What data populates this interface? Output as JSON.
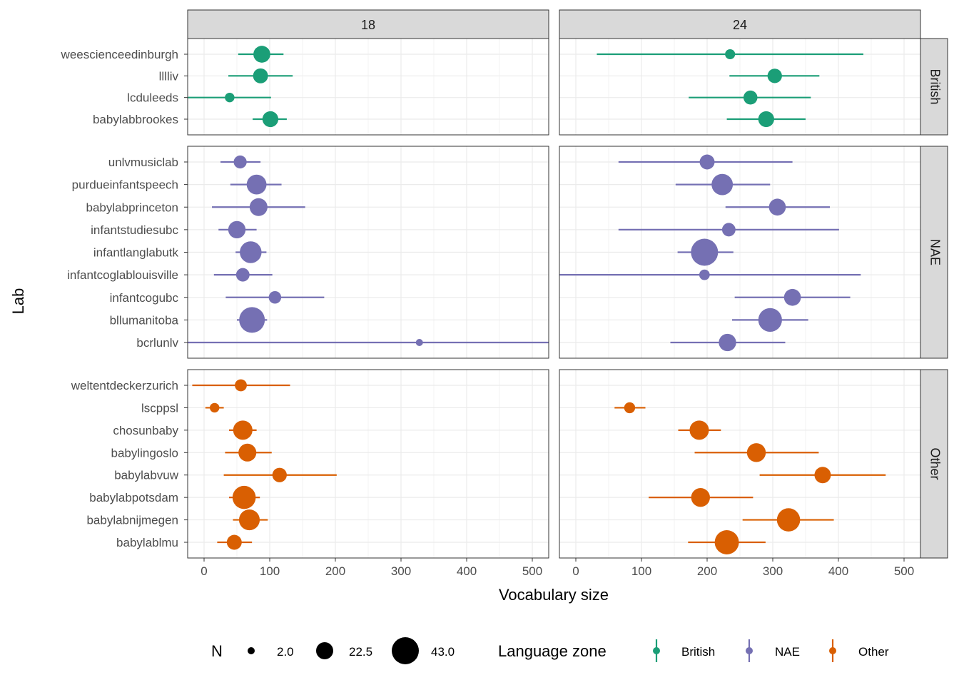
{
  "chart_data": {
    "type": "scatter",
    "style": "point-range with error bars, faceted grid",
    "xlabel": "Vocabulary size",
    "ylabel": "Lab",
    "xlim": [
      -25,
      525
    ],
    "x_ticks": [
      0,
      100,
      200,
      300,
      400,
      500
    ],
    "grid": true,
    "legend_position": "bottom",
    "column_facets": [
      "18",
      "24"
    ],
    "row_facets": [
      {
        "zone": "British",
        "labs": [
          "weescienceedinburgh",
          "lllliv",
          "lcduleeds",
          "babylabbrookes"
        ]
      },
      {
        "zone": "NAE",
        "labs": [
          "unlvmusiclab",
          "purdueinfantspeech",
          "babylabprinceton",
          "infantstudiesubc",
          "infantlanglabutk",
          "infantcoglablouisville",
          "infantcogubc",
          "bllumanitoba",
          "bcrlunlv"
        ]
      },
      {
        "zone": "Other",
        "labs": [
          "weltentdeckerzurich",
          "lscppsl",
          "chosunbaby",
          "babylingoslo",
          "babylabvuw",
          "babylabpotsdam",
          "babylabnijmegen",
          "babylablmu"
        ]
      }
    ],
    "colors": {
      "British": "#1b9e77",
      "NAE": "#7570b3",
      "Other": "#d95f02"
    },
    "size_legend": {
      "title": "N",
      "values": [
        2,
        22.5,
        43
      ],
      "labels": [
        "2.0",
        "22.5",
        "43.0"
      ]
    },
    "color_legend": {
      "title": "Language zone",
      "entries": [
        "British",
        "NAE",
        "Other"
      ]
    },
    "series": [
      {
        "name": "18",
        "points": [
          {
            "lab": "weescienceedinburgh",
            "zone": "British",
            "mean": 88,
            "low": 52,
            "high": 121,
            "n": 22
          },
          {
            "lab": "lllliv",
            "zone": "British",
            "mean": 86,
            "low": 37,
            "high": 135,
            "n": 18
          },
          {
            "lab": "lcduleeds",
            "zone": "British",
            "mean": 39,
            "low": -25,
            "high": 102,
            "n": 7
          },
          {
            "lab": "babylabbrookes",
            "zone": "British",
            "mean": 101,
            "low": 74,
            "high": 126,
            "n": 20
          },
          {
            "lab": "unlvmusiclab",
            "zone": "NAE",
            "mean": 55,
            "low": 25,
            "high": 86,
            "n": 14
          },
          {
            "lab": "purdueinfantspeech",
            "zone": "NAE",
            "mean": 80,
            "low": 40,
            "high": 118,
            "n": 28
          },
          {
            "lab": "babylabprinceton",
            "zone": "NAE",
            "mean": 83,
            "low": 12,
            "high": 154,
            "n": 24
          },
          {
            "lab": "infantstudiesubc",
            "zone": "NAE",
            "mean": 50,
            "low": 22,
            "high": 80,
            "n": 23
          },
          {
            "lab": "infantlanglabutk",
            "zone": "NAE",
            "mean": 71,
            "low": 48,
            "high": 95,
            "n": 32
          },
          {
            "lab": "infantcoglablouisville",
            "zone": "NAE",
            "mean": 59,
            "low": 15,
            "high": 104,
            "n": 15
          },
          {
            "lab": "infantcogubc",
            "zone": "NAE",
            "mean": 108,
            "low": 33,
            "high": 183,
            "n": 13
          },
          {
            "lab": "bllumanitoba",
            "zone": "NAE",
            "mean": 73,
            "low": 50,
            "high": 96,
            "n": 40
          },
          {
            "lab": "bcrlunlv",
            "zone": "NAE",
            "mean": 328,
            "low": -25,
            "high": 525,
            "n": 2
          },
          {
            "lab": "weltentdeckerzurich",
            "zone": "Other",
            "mean": 56,
            "low": -18,
            "high": 131,
            "n": 12
          },
          {
            "lab": "lscppsl",
            "zone": "Other",
            "mean": 16,
            "low": 2,
            "high": 30,
            "n": 7
          },
          {
            "lab": "chosunbaby",
            "zone": "Other",
            "mean": 59,
            "low": 38,
            "high": 80,
            "n": 27
          },
          {
            "lab": "babylingoslo",
            "zone": "Other",
            "mean": 66,
            "low": 32,
            "high": 103,
            "n": 24
          },
          {
            "lab": "babylabvuw",
            "zone": "Other",
            "mean": 115,
            "low": 30,
            "high": 202,
            "n": 17
          },
          {
            "lab": "babylabpotsdam",
            "zone": "Other",
            "mean": 61,
            "low": 38,
            "high": 85,
            "n": 35
          },
          {
            "lab": "babylabnijmegen",
            "zone": "Other",
            "mean": 69,
            "low": 44,
            "high": 97,
            "n": 30
          },
          {
            "lab": "babylablmu",
            "zone": "Other",
            "mean": 46,
            "low": 20,
            "high": 73,
            "n": 18
          }
        ]
      },
      {
        "name": "24",
        "points": [
          {
            "lab": "weescienceedinburgh",
            "zone": "British",
            "mean": 235,
            "low": 32,
            "high": 438,
            "n": 8
          },
          {
            "lab": "lllliv",
            "zone": "British",
            "mean": 303,
            "low": 234,
            "high": 371,
            "n": 17
          },
          {
            "lab": "lcduleeds",
            "zone": "British",
            "mean": 266,
            "low": 172,
            "high": 358,
            "n": 16
          },
          {
            "lab": "babylabbrookes",
            "zone": "British",
            "mean": 290,
            "low": 230,
            "high": 350,
            "n": 20
          },
          {
            "lab": "unlvmusiclab",
            "zone": "NAE",
            "mean": 200,
            "low": 65,
            "high": 330,
            "n": 18
          },
          {
            "lab": "purdueinfantspeech",
            "zone": "NAE",
            "mean": 223,
            "low": 152,
            "high": 296,
            "n": 31
          },
          {
            "lab": "babylabprinceton",
            "zone": "NAE",
            "mean": 307,
            "low": 228,
            "high": 387,
            "n": 22
          },
          {
            "lab": "infantstudiesubc",
            "zone": "NAE",
            "mean": 233,
            "low": 65,
            "high": 401,
            "n": 15
          },
          {
            "lab": "infantlanglabutk",
            "zone": "NAE",
            "mean": 196,
            "low": 155,
            "high": 240,
            "n": 43
          },
          {
            "lab": "infantcoglablouisville",
            "zone": "NAE",
            "mean": 196,
            "low": -25,
            "high": 434,
            "n": 9
          },
          {
            "lab": "infantcogubc",
            "zone": "NAE",
            "mean": 330,
            "low": 242,
            "high": 418,
            "n": 22
          },
          {
            "lab": "bllumanitoba",
            "zone": "NAE",
            "mean": 296,
            "low": 238,
            "high": 354,
            "n": 36
          },
          {
            "lab": "bcrlunlv",
            "zone": "NAE",
            "mean": 231,
            "low": 144,
            "high": 319,
            "n": 23
          },
          {
            "lab": "weltentdeckerzurich",
            "zone": "Other",
            "mean": null,
            "low": null,
            "high": null,
            "n": null
          },
          {
            "lab": "lscppsl",
            "zone": "Other",
            "mean": 82,
            "low": 59,
            "high": 106,
            "n": 10
          },
          {
            "lab": "chosunbaby",
            "zone": "Other",
            "mean": 188,
            "low": 156,
            "high": 221,
            "n": 27
          },
          {
            "lab": "babylingoslo",
            "zone": "Other",
            "mean": 275,
            "low": 181,
            "high": 370,
            "n": 26
          },
          {
            "lab": "babylabvuw",
            "zone": "Other",
            "mean": 376,
            "low": 280,
            "high": 472,
            "n": 21
          },
          {
            "lab": "babylabpotsdam",
            "zone": "Other",
            "mean": 190,
            "low": 111,
            "high": 270,
            "n": 26
          },
          {
            "lab": "babylabnijmegen",
            "zone": "Other",
            "mean": 324,
            "low": 254,
            "high": 393,
            "n": 35
          },
          {
            "lab": "babylablmu",
            "zone": "Other",
            "mean": 230,
            "low": 171,
            "high": 289,
            "n": 37
          }
        ]
      }
    ]
  }
}
